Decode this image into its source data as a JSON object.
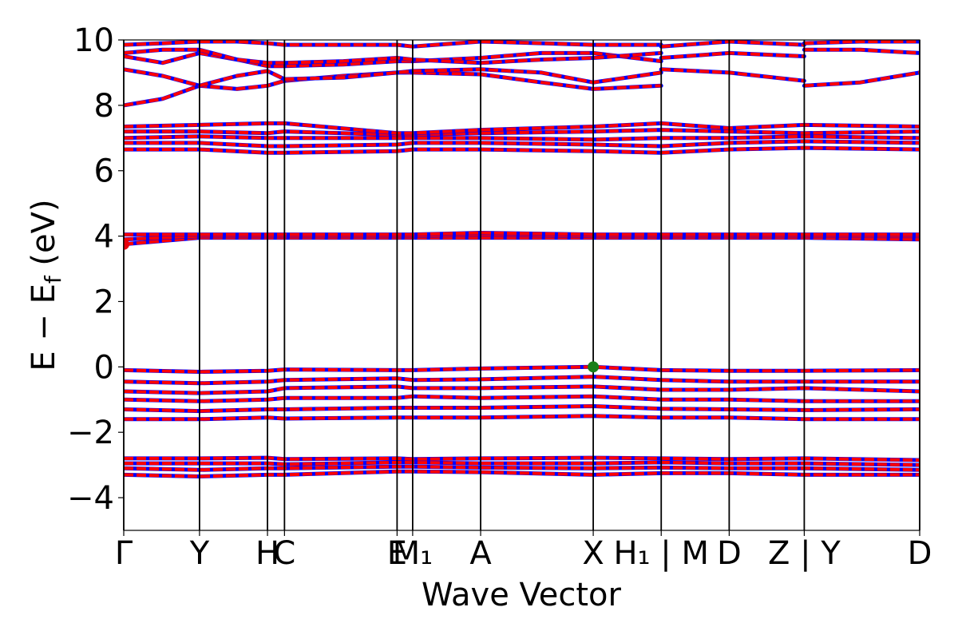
{
  "chart_data": {
    "type": "line",
    "title": "",
    "xlabel": "Wave Vector",
    "ylabel": "E − E",
    "ylabel_sub": "f",
    "ylabel_unit": " (eV)",
    "ylim": [
      -5,
      10
    ],
    "xlim": [
      0,
      11.24
    ],
    "yticks": [
      {
        "value": -4,
        "label": "−4"
      },
      {
        "value": -2,
        "label": "−2"
      },
      {
        "value": 0,
        "label": "0"
      },
      {
        "value": 2,
        "label": "2"
      },
      {
        "value": 4,
        "label": "4"
      },
      {
        "value": 6,
        "label": "6"
      },
      {
        "value": 8,
        "label": "8"
      },
      {
        "value": 10,
        "label": "10"
      }
    ],
    "kpoints": [
      {
        "pos": 0.0,
        "label": "Γ"
      },
      {
        "pos": 1.07,
        "label": "Y"
      },
      {
        "pos": 2.03,
        "label": "H"
      },
      {
        "pos": 2.27,
        "label": "C"
      },
      {
        "pos": 3.86,
        "label": "E"
      },
      {
        "pos": 4.08,
        "label": "M₁"
      },
      {
        "pos": 5.04,
        "label": "A"
      },
      {
        "pos": 6.63,
        "label": "X"
      },
      {
        "pos": 7.59,
        "label": "H₁ | M"
      },
      {
        "pos": 8.55,
        "label": "D"
      },
      {
        "pos": 9.61,
        "label": "Z | Y"
      },
      {
        "pos": 11.24,
        "label": "D"
      }
    ],
    "special_points": [
      {
        "name": "cbm",
        "x": 0.0,
        "y": 3.75,
        "color": "#e8000b"
      },
      {
        "name": "vbm",
        "x": 6.63,
        "y": 0.0,
        "color": "#1a7f1a"
      }
    ],
    "series": [
      {
        "x": [
          0,
          1.07,
          2.03,
          2.27,
          3.86,
          4.08,
          5.04,
          6.63,
          7.59,
          8.55,
          9.61,
          11.24
        ],
        "y": [
          -3.3,
          -3.35,
          -3.3,
          -3.3,
          -3.2,
          -3.2,
          -3.22,
          -3.3,
          -3.25,
          -3.25,
          -3.3,
          -3.3
        ]
      },
      {
        "x": [
          0,
          1.07,
          2.03,
          2.27,
          3.86,
          4.08,
          5.04,
          6.63,
          7.59,
          8.55,
          9.61,
          11.24
        ],
        "y": [
          -3.1,
          -3.15,
          -3.1,
          -3.1,
          -3.05,
          -3.05,
          -3.08,
          -3.1,
          -3.08,
          -3.1,
          -3.1,
          -3.15
        ]
      },
      {
        "x": [
          0,
          1.07,
          2.03,
          2.27,
          3.86,
          4.08,
          5.04,
          6.63,
          7.59,
          8.55,
          9.61,
          11.24
        ],
        "y": [
          -2.95,
          -2.95,
          -2.95,
          -2.98,
          -2.92,
          -2.92,
          -2.95,
          -2.95,
          -2.92,
          -2.95,
          -2.95,
          -3.0
        ]
      },
      {
        "x": [
          0,
          1.07,
          2.03,
          2.27,
          3.86,
          4.08,
          5.04,
          6.63,
          7.59,
          8.55,
          9.61,
          11.24
        ],
        "y": [
          -2.8,
          -2.8,
          -2.78,
          -2.82,
          -2.8,
          -2.82,
          -2.8,
          -2.78,
          -2.8,
          -2.82,
          -2.8,
          -2.85
        ]
      },
      {
        "x": [
          0,
          1.07,
          2.03,
          2.27,
          3.86,
          4.08,
          5.04,
          6.63,
          7.59,
          8.55,
          9.61,
          11.24
        ],
        "y": [
          -1.6,
          -1.6,
          -1.55,
          -1.58,
          -1.55,
          -1.55,
          -1.55,
          -1.5,
          -1.55,
          -1.55,
          -1.6,
          -1.6
        ]
      },
      {
        "x": [
          0,
          1.07,
          2.03,
          2.27,
          3.86,
          4.08,
          5.04,
          6.63,
          7.59,
          8.55,
          9.61,
          11.24
        ],
        "y": [
          -1.3,
          -1.35,
          -1.3,
          -1.3,
          -1.25,
          -1.25,
          -1.25,
          -1.2,
          -1.28,
          -1.3,
          -1.32,
          -1.3
        ]
      },
      {
        "x": [
          0,
          1.07,
          2.03,
          2.27,
          3.86,
          4.08,
          5.04,
          6.63,
          7.59,
          8.55,
          9.61,
          11.24
        ],
        "y": [
          -1.0,
          -1.05,
          -1.0,
          -0.95,
          -0.95,
          -0.9,
          -0.95,
          -0.9,
          -1.0,
          -1.0,
          -1.05,
          -1.05
        ]
      },
      {
        "x": [
          0,
          1.07,
          2.03,
          2.27,
          3.86,
          4.08,
          5.04,
          6.63,
          7.59,
          8.55,
          9.61,
          11.24
        ],
        "y": [
          -0.75,
          -0.8,
          -0.75,
          -0.65,
          -0.6,
          -0.65,
          -0.65,
          -0.6,
          -0.7,
          -0.7,
          -0.65,
          -0.75
        ]
      },
      {
        "x": [
          0,
          1.07,
          2.03,
          2.27,
          3.86,
          4.08,
          5.04,
          6.63,
          7.59,
          8.55,
          9.61,
          11.24
        ],
        "y": [
          -0.45,
          -0.5,
          -0.45,
          -0.4,
          -0.35,
          -0.4,
          -0.38,
          -0.3,
          -0.4,
          -0.45,
          -0.45,
          -0.45
        ]
      },
      {
        "x": [
          0,
          1.07,
          2.03,
          2.27,
          3.86,
          4.08,
          5.04,
          6.63,
          7.59,
          8.55,
          9.61,
          11.24
        ],
        "y": [
          -0.1,
          -0.15,
          -0.12,
          -0.08,
          -0.1,
          -0.1,
          -0.05,
          0.0,
          -0.1,
          -0.12,
          -0.12,
          -0.1
        ]
      },
      {
        "x": [
          0,
          1.07,
          2.03,
          2.27,
          3.86,
          4.08,
          5.04,
          6.63,
          7.59,
          8.55,
          9.61,
          11.24
        ],
        "y": [
          3.75,
          3.95,
          3.95,
          3.95,
          3.95,
          3.95,
          3.95,
          3.95,
          3.95,
          3.95,
          3.95,
          3.9
        ]
      },
      {
        "x": [
          0,
          1.07,
          2.03,
          2.27,
          3.86,
          4.08,
          5.04,
          6.63,
          7.59,
          8.55,
          9.61,
          11.24
        ],
        "y": [
          3.9,
          4.0,
          4.0,
          4.0,
          4.0,
          4.0,
          4.05,
          4.0,
          4.0,
          4.0,
          4.0,
          4.0
        ]
      },
      {
        "x": [
          0,
          1.07,
          2.03,
          2.27,
          3.86,
          4.08,
          5.04,
          6.63,
          7.59,
          8.55,
          9.61,
          11.24
        ],
        "y": [
          4.05,
          4.05,
          4.05,
          4.05,
          4.05,
          4.05,
          4.1,
          4.05,
          4.05,
          4.05,
          4.05,
          4.05
        ]
      },
      {
        "x": [
          0,
          1.07,
          2.03,
          2.27,
          3.86,
          4.08,
          5.04,
          6.63,
          7.59,
          8.55,
          9.61,
          11.24
        ],
        "y": [
          6.65,
          6.65,
          6.55,
          6.55,
          6.6,
          6.65,
          6.65,
          6.6,
          6.55,
          6.65,
          6.7,
          6.65
        ]
      },
      {
        "x": [
          0,
          1.07,
          2.03,
          2.27,
          3.86,
          4.08,
          5.04,
          6.63,
          7.59,
          8.55,
          9.61,
          11.24
        ],
        "y": [
          6.85,
          6.85,
          6.75,
          6.75,
          6.8,
          6.85,
          6.85,
          6.8,
          6.75,
          6.85,
          6.9,
          6.85
        ]
      },
      {
        "x": [
          0,
          1.07,
          2.03,
          2.27,
          3.86,
          4.08,
          5.04,
          6.63,
          7.59,
          8.55,
          9.61,
          11.24
        ],
        "y": [
          7.0,
          7.05,
          7.0,
          7.0,
          7.0,
          7.0,
          7.0,
          6.95,
          7.0,
          7.0,
          7.05,
          7.0
        ]
      },
      {
        "x": [
          0,
          1.07,
          2.03,
          2.27,
          3.86,
          4.08,
          5.04,
          6.63,
          7.59,
          8.55,
          9.61,
          11.24
        ],
        "y": [
          7.2,
          7.2,
          7.15,
          7.2,
          7.1,
          7.1,
          7.15,
          7.2,
          7.25,
          7.2,
          7.15,
          7.2
        ]
      },
      {
        "x": [
          0,
          1.07,
          2.03,
          2.27,
          3.86,
          4.08,
          5.04,
          6.63,
          7.59,
          8.55,
          9.61,
          11.24
        ],
        "y": [
          7.35,
          7.4,
          7.45,
          7.45,
          7.15,
          7.15,
          7.25,
          7.35,
          7.45,
          7.3,
          7.4,
          7.35
        ]
      },
      {
        "x": [
          0,
          0.55,
          1.07,
          1.6,
          2.03,
          2.27,
          3.1,
          3.86,
          4.08,
          5.04,
          5.9,
          6.63,
          7.59
        ],
        "y": [
          8.0,
          8.2,
          8.6,
          8.5,
          8.6,
          8.75,
          8.9,
          9.0,
          9.0,
          8.95,
          8.7,
          8.5,
          8.6
        ]
      },
      {
        "x": [
          0,
          0.55,
          1.07,
          1.6,
          2.03,
          2.27,
          3.1,
          3.86,
          4.08,
          5.04,
          5.9,
          6.63,
          7.59
        ],
        "y": [
          9.1,
          8.9,
          8.6,
          8.9,
          9.05,
          8.8,
          8.85,
          9.0,
          9.05,
          9.1,
          9.0,
          8.7,
          9.0
        ]
      },
      {
        "x": [
          0,
          0.55,
          1.07,
          1.6,
          2.03,
          2.27,
          3.1,
          3.86,
          4.08,
          5.04,
          5.9,
          6.63,
          7.59
        ],
        "y": [
          9.5,
          9.3,
          9.6,
          9.4,
          9.2,
          9.2,
          9.25,
          9.35,
          9.35,
          9.45,
          9.6,
          9.6,
          9.35
        ]
      },
      {
        "x": [
          0,
          0.55,
          1.07,
          1.6,
          2.03,
          2.27,
          3.1,
          3.86,
          4.08,
          5.04,
          5.9,
          6.63,
          7.59
        ],
        "y": [
          9.6,
          9.7,
          9.7,
          9.4,
          9.3,
          9.3,
          9.35,
          9.45,
          9.4,
          9.3,
          9.4,
          9.45,
          9.6
        ]
      },
      {
        "x": [
          0,
          0.55,
          1.07,
          1.6,
          2.03,
          2.27,
          3.1,
          3.86,
          4.08,
          5.04,
          5.9,
          6.63,
          7.59
        ],
        "y": [
          9.85,
          9.9,
          9.95,
          9.95,
          9.9,
          9.85,
          9.85,
          9.85,
          9.8,
          9.95,
          9.9,
          9.85,
          9.85
        ]
      },
      {
        "x": [
          7.59,
          8.55,
          9.61
        ],
        "y": [
          9.1,
          9.0,
          8.75
        ]
      },
      {
        "x": [
          7.59,
          8.55,
          9.61
        ],
        "y": [
          9.45,
          9.6,
          9.5
        ]
      },
      {
        "x": [
          7.59,
          8.55,
          9.61
        ],
        "y": [
          9.8,
          9.95,
          9.85
        ]
      },
      {
        "x": [
          9.61,
          10.4,
          11.24
        ],
        "y": [
          8.6,
          8.7,
          9.0
        ]
      },
      {
        "x": [
          9.61,
          10.4,
          11.24
        ],
        "y": [
          9.7,
          9.7,
          9.6
        ]
      },
      {
        "x": [
          9.61,
          10.4,
          11.24
        ],
        "y": [
          9.9,
          9.95,
          9.95
        ]
      }
    ]
  }
}
